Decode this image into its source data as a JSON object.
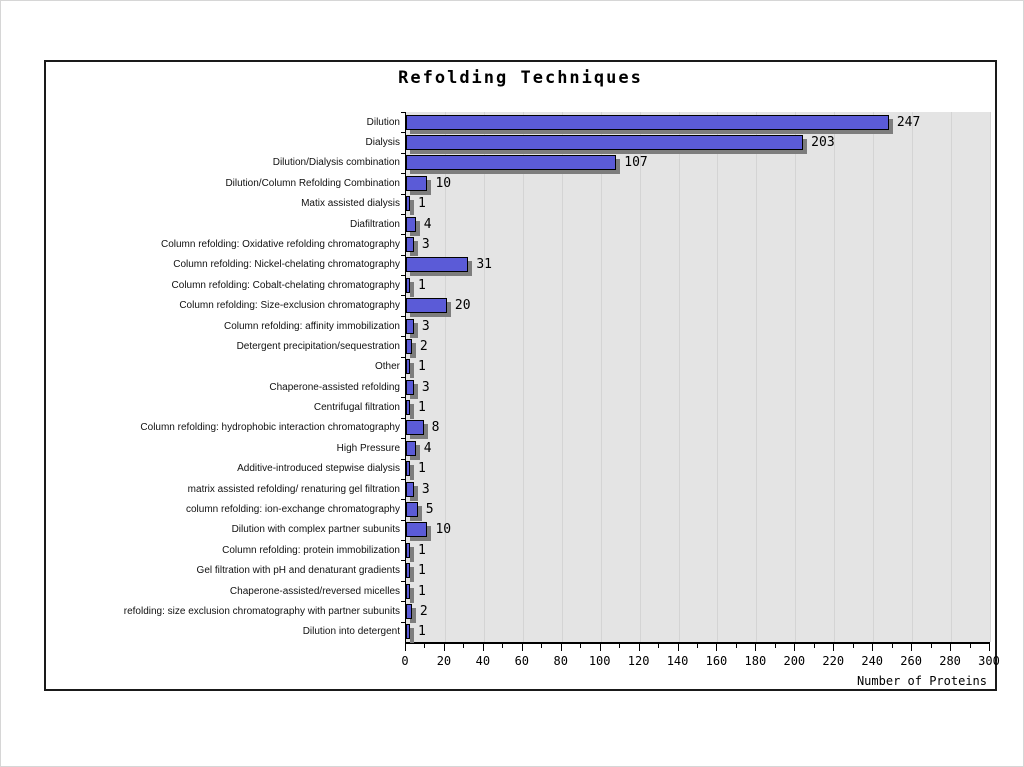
{
  "chart_data": {
    "type": "bar",
    "orientation": "horizontal",
    "title": "Refolding Techniques",
    "xlabel": "Number of Proteins",
    "xlim": [
      0,
      300
    ],
    "xtick_step": 20,
    "minor_tick_step": 10,
    "grid": true,
    "legend": "none",
    "plot_background": "#e4e4e4",
    "bar_color": "#5b5bd7",
    "bar_border_color": "#000000",
    "bar_shadow_color": "#7d7d7d",
    "categories": [
      "Dilution",
      "Dialysis",
      "Dilution/Dialysis combination",
      "Dilution/Column Refolding Combination",
      "Matix assisted dialysis",
      "Diafiltration",
      "Column refolding: Oxidative refolding chromatography",
      "Column refolding: Nickel-chelating chromatography",
      "Column refolding: Cobalt-chelating chromatography",
      "Column refolding: Size-exclusion chromatography",
      "Column refolding: affinity immobilization",
      "Detergent precipitation/sequestration",
      "Other",
      "Chaperone-assisted refolding",
      "Centrifugal filtration",
      "Column refolding: hydrophobic interaction chromatography",
      "High Pressure",
      "Additive-introduced stepwise dialysis",
      "matrix assisted refolding/ renaturing gel filtration",
      "column refolding: ion-exchange chromatography",
      "Dilution with complex partner subunits",
      "Column refolding: protein immobilization",
      "Gel filtration with pH and denaturant gradients",
      "Chaperone-assisted/reversed micelles",
      "refolding: size exclusion chromatography with partner subunits",
      "Dilution into detergent"
    ],
    "values": [
      247,
      203,
      107,
      10,
      1,
      4,
      3,
      31,
      1,
      20,
      3,
      2,
      1,
      3,
      1,
      8,
      4,
      1,
      3,
      5,
      10,
      1,
      1,
      1,
      2,
      1
    ]
  }
}
